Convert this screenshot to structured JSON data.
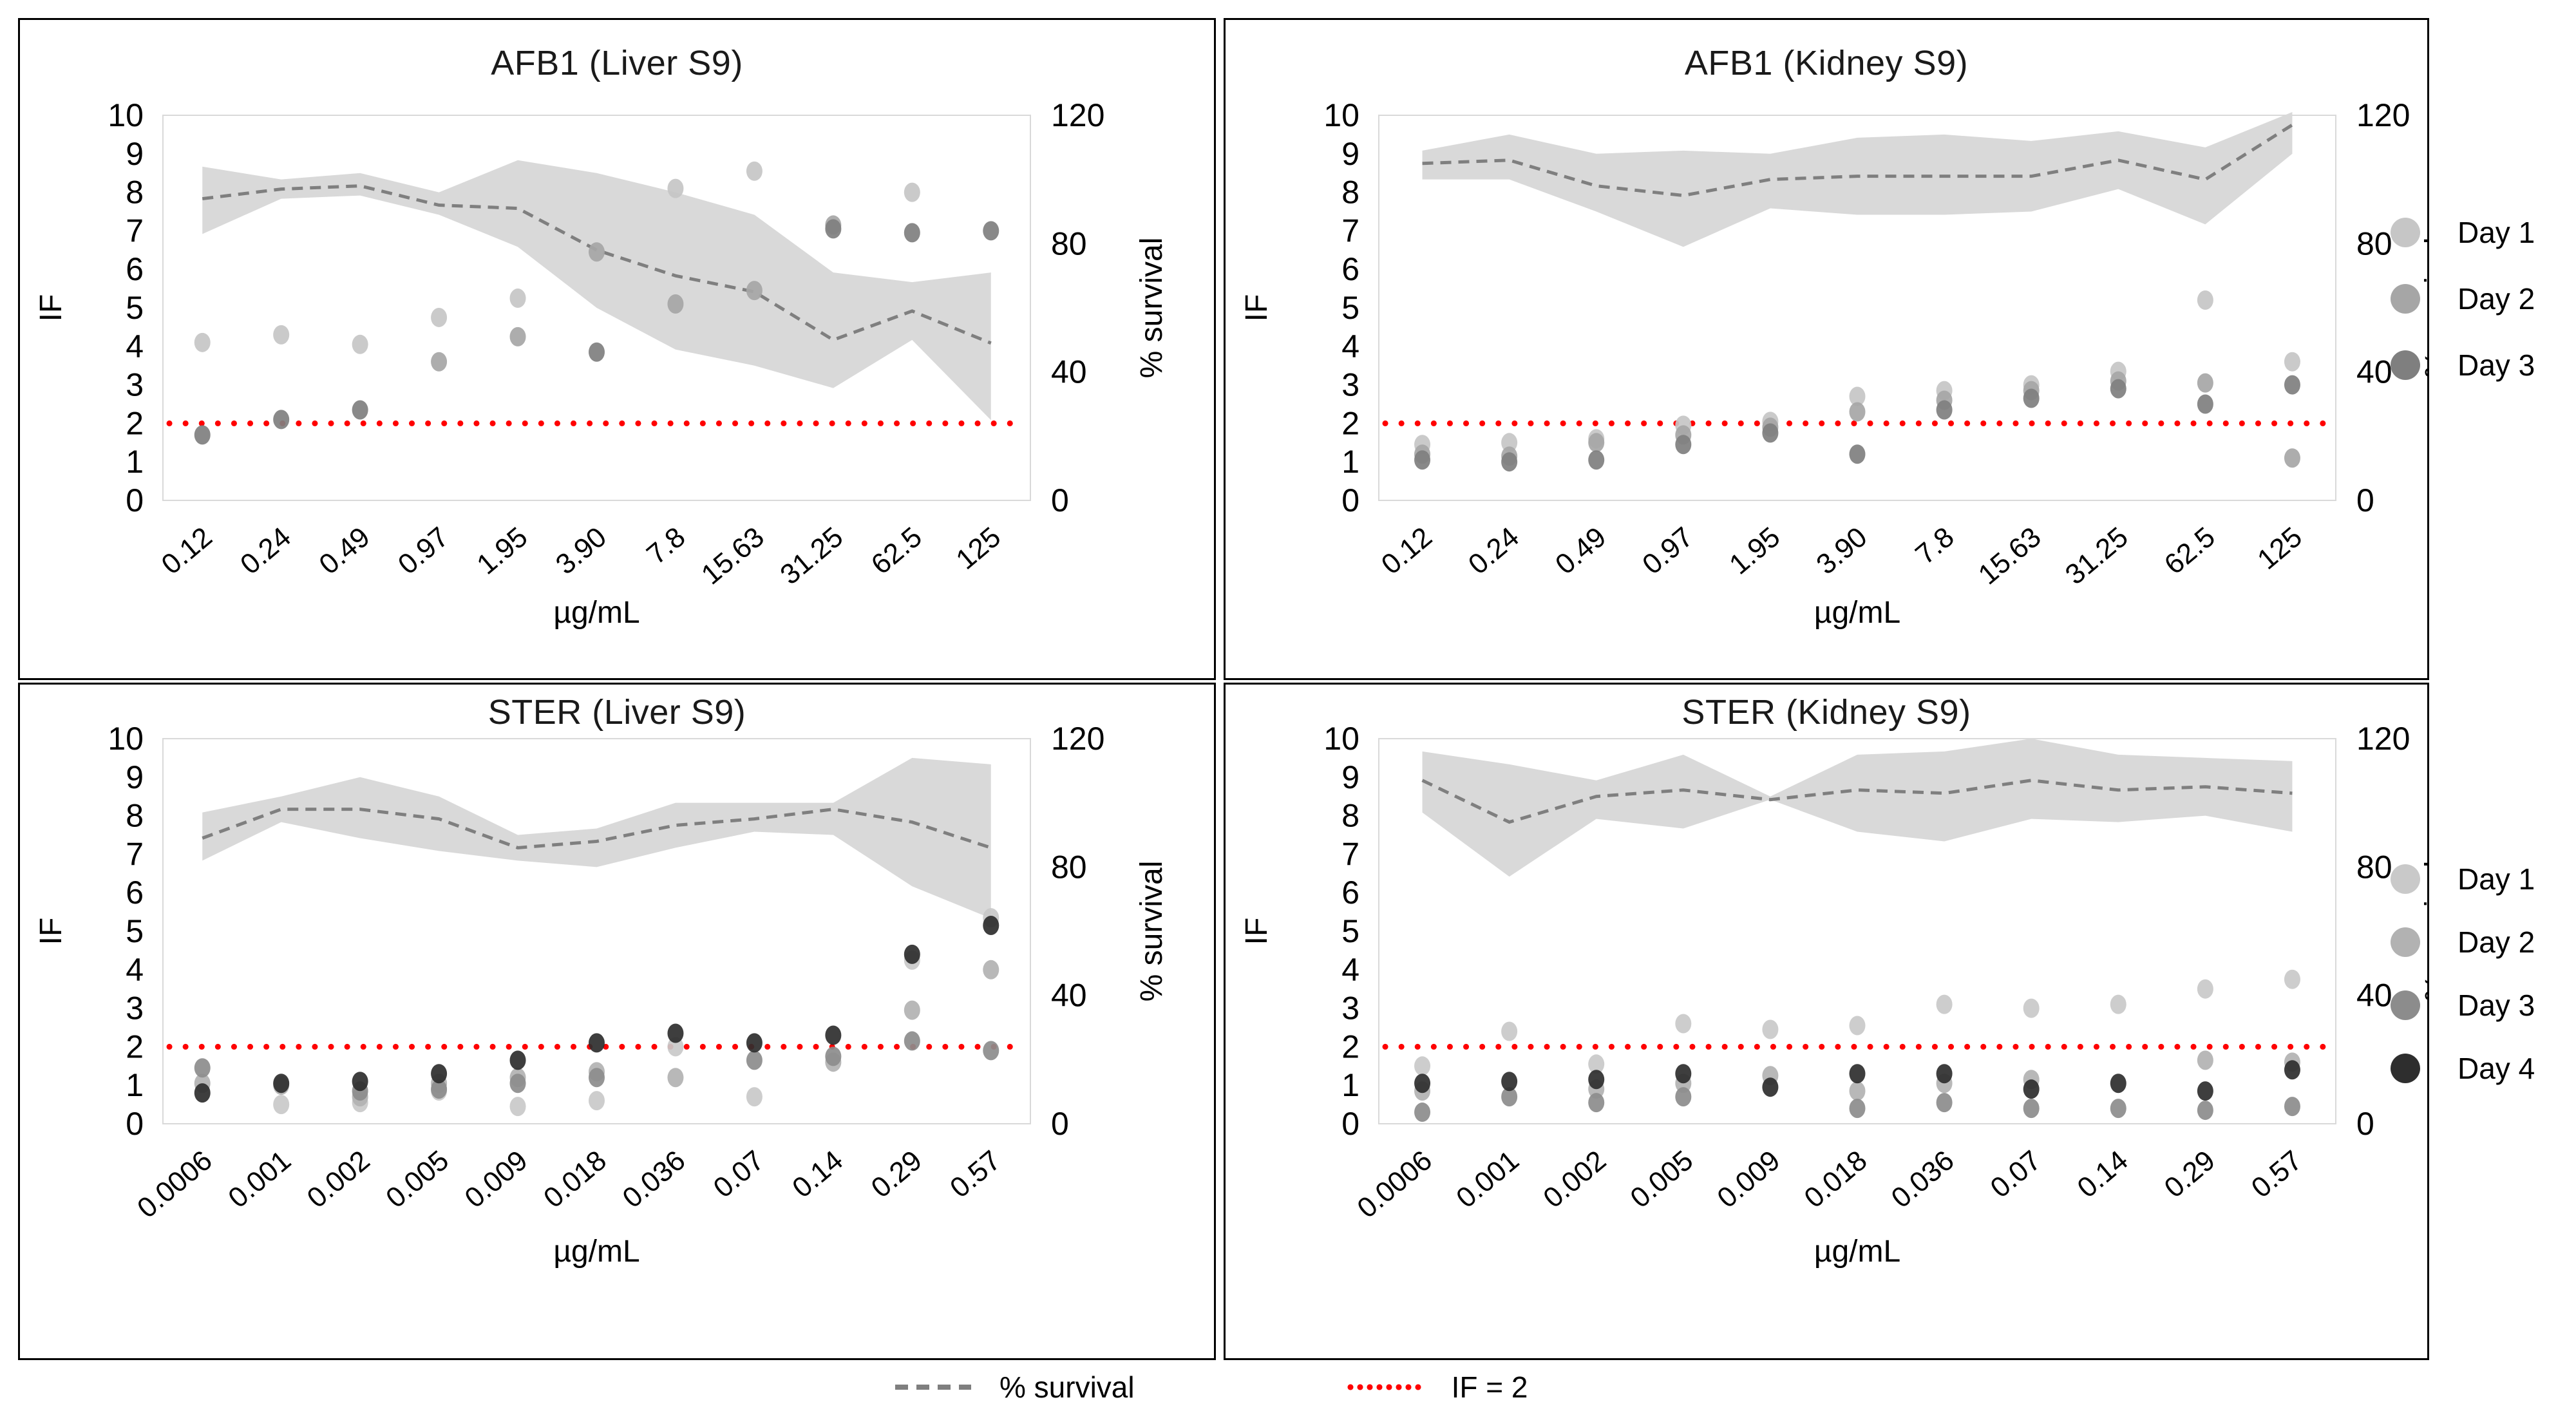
{
  "axes_common": {
    "xlabel": "µg/mL",
    "ylabel_left": "IF",
    "ylabel_right": "% survival",
    "yticks_left": [
      0,
      1,
      2,
      3,
      4,
      5,
      6,
      7,
      8,
      9,
      10
    ],
    "yticks_right": [
      0,
      40,
      80,
      120
    ]
  },
  "colors": {
    "band": "#d9d9d9",
    "survival_line": "#7f7f7f",
    "threshold_line": "#ff0000",
    "plot_border": "#d9d9d9",
    "text": "#000000"
  },
  "legend_top": {
    "items": [
      {
        "label": "Day 1",
        "color": "#c6c6c6"
      },
      {
        "label": "Day 2",
        "color": "#a6a6a6"
      },
      {
        "label": "Day 3",
        "color": "#7f7f7f"
      }
    ]
  },
  "legend_bottom": {
    "items": [
      {
        "label": "Day 1",
        "color": "#c9c9c9"
      },
      {
        "label": "Day 2",
        "color": "#b2b2b2"
      },
      {
        "label": "Day 3",
        "color": "#8c8c8c"
      },
      {
        "label": "Day 4",
        "color": "#2e2e2e"
      }
    ]
  },
  "line_legend": {
    "survival_label": "% survival",
    "survival_color": "#7f7f7f",
    "threshold_label": "IF = 2",
    "threshold_color": "#ff0000"
  },
  "chart_data": [
    {
      "type": "line+scatter",
      "title": "AFB1 (Liver S9)",
      "xlabel": "µg/mL",
      "ylabel_left": "IF",
      "ylabel_right": "% survival",
      "ylim_left": [
        0,
        10
      ],
      "ylim_right": [
        0,
        120
      ],
      "if_threshold": 2,
      "categories": [
        "0.12",
        "0.24",
        "0.49",
        "0.97",
        "1.95",
        "3.90",
        "7.8",
        "15.63",
        "31.25",
        "62.5",
        "125"
      ],
      "survival_pct": {
        "mean": [
          94,
          97,
          98,
          92,
          91,
          78,
          70,
          65,
          50,
          59,
          49
        ],
        "upper": [
          104,
          100,
          102,
          96,
          106,
          102,
          96,
          89,
          71,
          68,
          71
        ],
        "lower": [
          83,
          94,
          95,
          89,
          79,
          60,
          47,
          42,
          35,
          50,
          25
        ]
      },
      "days": [
        {
          "name": "Day 1",
          "color": "#c6c6c6",
          "points": [
            [
              0,
              4.1
            ],
            [
              1,
              4.3
            ],
            [
              2,
              4.05
            ],
            [
              3,
              4.75
            ],
            [
              4,
              5.25
            ],
            [
              6,
              8.1
            ],
            [
              7,
              8.55
            ],
            [
              9,
              8.0
            ]
          ]
        },
        {
          "name": "Day 2",
          "color": "#a6a6a6",
          "points": [
            [
              3,
              3.6
            ],
            [
              4,
              4.25
            ],
            [
              5,
              6.45
            ],
            [
              6,
              5.1
            ],
            [
              7,
              5.45
            ],
            [
              8,
              7.15
            ]
          ]
        },
        {
          "name": "Day 3",
          "color": "#7f7f7f",
          "points": [
            [
              0,
              1.7
            ],
            [
              1,
              2.1
            ],
            [
              2,
              2.35
            ],
            [
              5,
              3.85
            ],
            [
              8,
              7.05
            ],
            [
              9,
              6.95
            ],
            [
              10,
              7.0
            ]
          ]
        }
      ]
    },
    {
      "type": "line+scatter",
      "title": "AFB1 (Kidney S9)",
      "xlabel": "µg/mL",
      "ylabel_left": "IF",
      "ylabel_right": "% survival",
      "ylim_left": [
        0,
        10
      ],
      "ylim_right": [
        0,
        120
      ],
      "if_threshold": 2,
      "categories": [
        "0.12",
        "0.24",
        "0.49",
        "0.97",
        "1.95",
        "3.90",
        "7.8",
        "15.63",
        "31.25",
        "62.5",
        "125"
      ],
      "survival_pct": {
        "mean": [
          105,
          106,
          98,
          95,
          100,
          101,
          101,
          101,
          106,
          100,
          117
        ],
        "upper": [
          109,
          114,
          108,
          109,
          108,
          113,
          114,
          112,
          115,
          110,
          121
        ],
        "lower": [
          100,
          100,
          90,
          79,
          91,
          89,
          89,
          90,
          97,
          86,
          108
        ]
      },
      "days": [
        {
          "name": "Day 1",
          "color": "#c6c6c6",
          "points": [
            [
              0,
              1.45
            ],
            [
              1,
              1.5
            ],
            [
              2,
              1.6
            ],
            [
              3,
              1.95
            ],
            [
              4,
              2.05
            ],
            [
              5,
              2.7
            ],
            [
              6,
              2.85
            ],
            [
              7,
              3.0
            ],
            [
              8,
              3.35
            ],
            [
              9,
              5.2
            ],
            [
              10,
              3.6
            ]
          ]
        },
        {
          "name": "Day 2",
          "color": "#a6a6a6",
          "points": [
            [
              0,
              1.2
            ],
            [
              1,
              1.15
            ],
            [
              2,
              1.5
            ],
            [
              3,
              1.7
            ],
            [
              4,
              1.9
            ],
            [
              5,
              2.3
            ],
            [
              6,
              2.6
            ],
            [
              7,
              2.85
            ],
            [
              8,
              3.1
            ],
            [
              9,
              3.05
            ],
            [
              10,
              1.1
            ]
          ]
        },
        {
          "name": "Day 3",
          "color": "#7f7f7f",
          "points": [
            [
              0,
              1.05
            ],
            [
              1,
              1.0
            ],
            [
              2,
              1.05
            ],
            [
              3,
              1.45
            ],
            [
              4,
              1.75
            ],
            [
              5,
              1.2
            ],
            [
              6,
              2.35
            ],
            [
              7,
              2.65
            ],
            [
              8,
              2.9
            ],
            [
              9,
              2.5
            ],
            [
              10,
              3.0
            ]
          ]
        }
      ]
    },
    {
      "type": "line+scatter",
      "title": "STER (Liver S9)",
      "xlabel": "µg/mL",
      "ylabel_left": "IF",
      "ylabel_right": "% survival",
      "ylim_left": [
        0,
        10
      ],
      "ylim_right": [
        0,
        120
      ],
      "if_threshold": 2,
      "categories": [
        "0.0006",
        "0.001",
        "0.002",
        "0.005",
        "0.009",
        "0.018",
        "0.036",
        "0.07",
        "0.14",
        "0.29",
        "0.57"
      ],
      "survival_pct": {
        "mean": [
          89,
          98,
          98,
          95,
          86,
          88,
          93,
          95,
          98,
          94,
          86
        ],
        "upper": [
          97,
          102,
          108,
          102,
          90,
          92,
          100,
          100,
          100,
          114,
          112
        ],
        "lower": [
          82,
          94,
          89,
          85,
          82,
          80,
          86,
          91,
          90,
          74,
          64
        ]
      },
      "days": [
        {
          "name": "Day 1",
          "color": "#c9c9c9",
          "points": [
            [
              1,
              0.5
            ],
            [
              2,
              0.55
            ],
            [
              3,
              0.85
            ],
            [
              4,
              0.45
            ],
            [
              5,
              0.6
            ],
            [
              6,
              2.0
            ],
            [
              7,
              0.7
            ],
            [
              9,
              4.25
            ],
            [
              10,
              5.35
            ]
          ]
        },
        {
          "name": "Day 2",
          "color": "#b2b2b2",
          "points": [
            [
              0,
              1.05
            ],
            [
              1,
              1.0
            ],
            [
              2,
              0.7
            ],
            [
              3,
              1.05
            ],
            [
              4,
              1.2
            ],
            [
              5,
              1.35
            ],
            [
              6,
              1.2
            ],
            [
              8,
              1.6
            ],
            [
              9,
              2.95
            ],
            [
              10,
              4.0
            ]
          ]
        },
        {
          "name": "Day 3",
          "color": "#8c8c8c",
          "points": [
            [
              0,
              1.45
            ],
            [
              2,
              0.85
            ],
            [
              3,
              0.9
            ],
            [
              4,
              1.05
            ],
            [
              5,
              1.2
            ],
            [
              7,
              1.65
            ],
            [
              8,
              1.75
            ],
            [
              9,
              2.15
            ],
            [
              10,
              1.9
            ]
          ]
        },
        {
          "name": "Day 4",
          "color": "#2e2e2e",
          "points": [
            [
              0,
              0.8
            ],
            [
              1,
              1.05
            ],
            [
              2,
              1.1
            ],
            [
              3,
              1.3
            ],
            [
              4,
              1.65
            ],
            [
              5,
              2.1
            ],
            [
              6,
              2.35
            ],
            [
              7,
              2.1
            ],
            [
              8,
              2.3
            ],
            [
              9,
              4.4
            ],
            [
              10,
              5.15
            ]
          ]
        }
      ]
    },
    {
      "type": "line+scatter",
      "title": "STER (Kidney S9)",
      "xlabel": "µg/mL",
      "ylabel_left": "IF",
      "ylabel_right": "% survival",
      "ylim_left": [
        0,
        10
      ],
      "ylim_right": [
        0,
        120
      ],
      "if_threshold": 2,
      "categories": [
        "0.0006",
        "0.001",
        "0.002",
        "0.005",
        "0.009",
        "0.018",
        "0.036",
        "0.07",
        "0.14",
        "0.29",
        "0.57"
      ],
      "survival_pct": {
        "mean": [
          107,
          94,
          102,
          104,
          101,
          104,
          103,
          107,
          104,
          105,
          103
        ],
        "upper": [
          116,
          112,
          107,
          115,
          102,
          115,
          116,
          120,
          115,
          114,
          113
        ],
        "lower": [
          97,
          77,
          95,
          92,
          101,
          91,
          88,
          95,
          94,
          96,
          91
        ]
      },
      "days": [
        {
          "name": "Day 1",
          "color": "#c9c9c9",
          "points": [
            [
              0,
              1.5
            ],
            [
              1,
              2.4
            ],
            [
              2,
              1.55
            ],
            [
              3,
              2.6
            ],
            [
              4,
              2.45
            ],
            [
              5,
              2.55
            ],
            [
              6,
              3.1
            ],
            [
              7,
              3.0
            ],
            [
              8,
              3.1
            ],
            [
              9,
              3.5
            ],
            [
              10,
              3.75
            ]
          ]
        },
        {
          "name": "Day 2",
          "color": "#b2b2b2",
          "points": [
            [
              0,
              0.85
            ],
            [
              2,
              0.9
            ],
            [
              3,
              1.05
            ],
            [
              4,
              1.25
            ],
            [
              5,
              0.85
            ],
            [
              6,
              1.05
            ],
            [
              7,
              1.15
            ],
            [
              9,
              1.65
            ],
            [
              10,
              1.6
            ]
          ]
        },
        {
          "name": "Day 3",
          "color": "#8c8c8c",
          "points": [
            [
              0,
              0.3
            ],
            [
              1,
              0.7
            ],
            [
              2,
              0.55
            ],
            [
              3,
              0.7
            ],
            [
              5,
              0.4
            ],
            [
              6,
              0.55
            ],
            [
              7,
              0.4
            ],
            [
              8,
              0.4
            ],
            [
              9,
              0.35
            ],
            [
              10,
              0.45
            ]
          ]
        },
        {
          "name": "Day 4",
          "color": "#2e2e2e",
          "points": [
            [
              0,
              1.05
            ],
            [
              1,
              1.1
            ],
            [
              2,
              1.15
            ],
            [
              3,
              1.3
            ],
            [
              4,
              0.95
            ],
            [
              5,
              1.3
            ],
            [
              6,
              1.3
            ],
            [
              7,
              0.9
            ],
            [
              8,
              1.05
            ],
            [
              9,
              0.85
            ],
            [
              10,
              1.4
            ]
          ]
        }
      ]
    }
  ]
}
